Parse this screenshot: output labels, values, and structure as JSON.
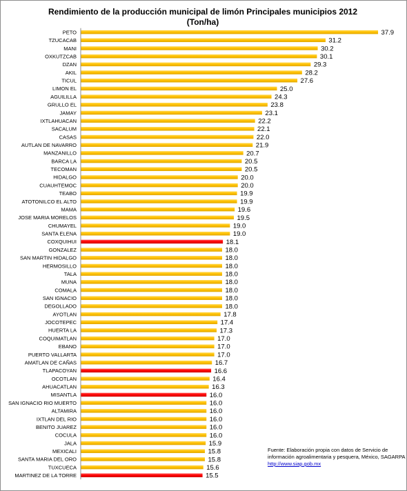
{
  "chart_data": {
    "type": "bar",
    "orientation": "horizontal",
    "title": "Rendimiento de la producción municipal de limón Principales municipios 2012",
    "subtitle": "(Ton/ha)",
    "xlabel": "",
    "ylabel": "",
    "xlim": [
      0,
      40
    ],
    "grid": false,
    "legend": "none",
    "colors": {
      "default": "#ffc000",
      "highlight": "#ff0000"
    },
    "categories": [
      "PETO",
      "TZUCACAB",
      "MANI",
      "OXKUTZCAB",
      "DZAN",
      "AKIL",
      "TICUL",
      "LIMON EL",
      "AGUILILLA",
      "GRULLO EL",
      "JAMAY",
      "IXTLAHUACAN",
      "SACALUM",
      "CASAS",
      "AUTLAN DE NAVARRO",
      "MANZANILLO",
      "BARCA LA",
      "TECOMAN",
      "HIDALGO",
      "CUAUHTEMOC",
      "TEABO",
      "ATOTONILCO EL ALTO",
      "MAMA",
      "JOSE MARIA MORELOS",
      "CHUMAYEL",
      "SANTA ELENA",
      "COXQUIHUI",
      "GONZALEZ",
      "SAN MARTIN HIDALGO",
      "HERMOSILLO",
      "TALA",
      "MUNA",
      "COMALA",
      "SAN IGNACIO",
      "DEGOLLADO",
      "AYOTLAN",
      "JOCOTEPEC",
      "HUERTA LA",
      "COQUIMATLAN",
      "EBANO",
      "PUERTO VALLARTA",
      "AMATLAN DE CAÑAS",
      "TLAPACOYAN",
      "OCOTLAN",
      "AHUACATLAN",
      "MISANTLA",
      "SAN IGNACIO RIO MUERTO",
      "ALTAMIRA",
      "IXTLAN DEL RIO",
      "BENITO JUAREZ",
      "COCULA",
      "JALA",
      "MEXICALI",
      "SANTA MARIA DEL ORO",
      "TUXCUECA",
      "MARTINEZ DE LA TORRE"
    ],
    "values": [
      37.9,
      31.2,
      30.2,
      30.1,
      29.3,
      28.2,
      27.6,
      25.0,
      24.3,
      23.8,
      23.1,
      22.2,
      22.1,
      22.0,
      21.9,
      20.7,
      20.5,
      20.5,
      20.0,
      20.0,
      19.9,
      19.9,
      19.6,
      19.5,
      19.0,
      19.0,
      18.1,
      18.0,
      18.0,
      18.0,
      18.0,
      18.0,
      18.0,
      18.0,
      18.0,
      17.8,
      17.4,
      17.3,
      17.0,
      17.0,
      17.0,
      16.7,
      16.6,
      16.4,
      16.3,
      16.0,
      16.0,
      16.0,
      16.0,
      16.0,
      16.0,
      15.9,
      15.8,
      15.8,
      15.6,
      15.5
    ],
    "highlighted": [
      "COXQUIHUI",
      "TLAPACOYAN",
      "MISANTLA",
      "MARTINEZ DE LA TORRE"
    ]
  },
  "source": {
    "text": "Fuente: Elaboración propia con datos de Servicio de información agroalimentaria y pesquera, México, SAGARPA",
    "link": "http://www.siap.gob.mx"
  }
}
